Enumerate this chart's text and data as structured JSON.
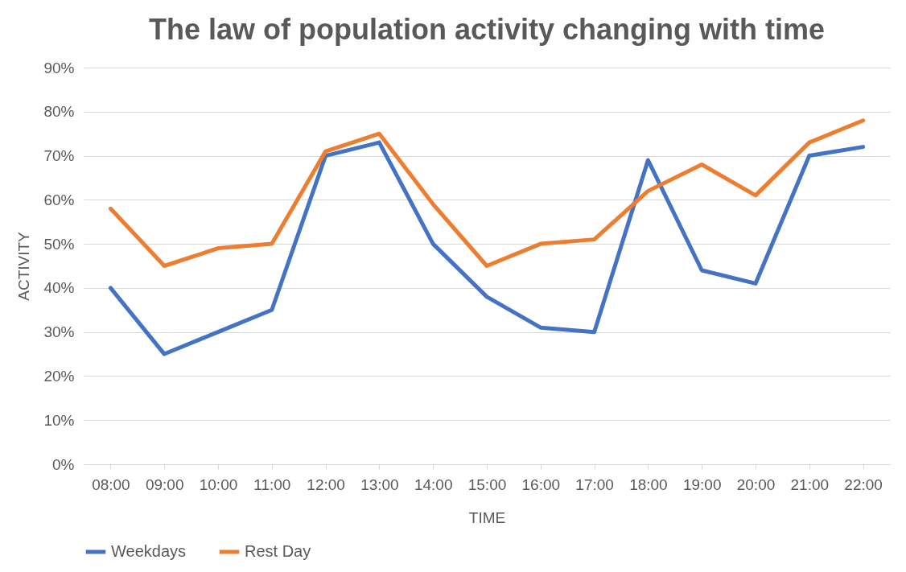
{
  "chart_data": {
    "type": "line",
    "title": "The law of population activity changing with  time",
    "xlabel": "TIME",
    "ylabel": "ACTIVITY",
    "categories": [
      "08:00",
      "09:00",
      "10:00",
      "11:00",
      "12:00",
      "13:00",
      "14:00",
      "15:00",
      "16:00",
      "17:00",
      "18:00",
      "19:00",
      "20:00",
      "21:00",
      "22:00"
    ],
    "series": [
      {
        "name": "Weekdays",
        "color": "#4472c4",
        "values": [
          40,
          25,
          30,
          35,
          70,
          73,
          50,
          38,
          31,
          30,
          69,
          44,
          41,
          70,
          72
        ]
      },
      {
        "name": "Rest Day",
        "color": "#ed7d31",
        "values": [
          58,
          45,
          49,
          50,
          71,
          75,
          59,
          45,
          50,
          51,
          62,
          68,
          61,
          73,
          78
        ]
      }
    ],
    "ylim": [
      0,
      90
    ],
    "yticks": [
      {
        "value": 0,
        "label": "0%"
      },
      {
        "value": 10,
        "label": "10%"
      },
      {
        "value": 20,
        "label": "20%"
      },
      {
        "value": 30,
        "label": "30%"
      },
      {
        "value": 40,
        "label": "40%"
      },
      {
        "value": 50,
        "label": "50%"
      },
      {
        "value": 60,
        "label": "60%"
      },
      {
        "value": 70,
        "label": "70%"
      },
      {
        "value": 80,
        "label": "80%"
      },
      {
        "value": 90,
        "label": "90%"
      }
    ],
    "grid": "y",
    "legend": "bottom",
    "marker": "none",
    "line_style": "solid"
  }
}
